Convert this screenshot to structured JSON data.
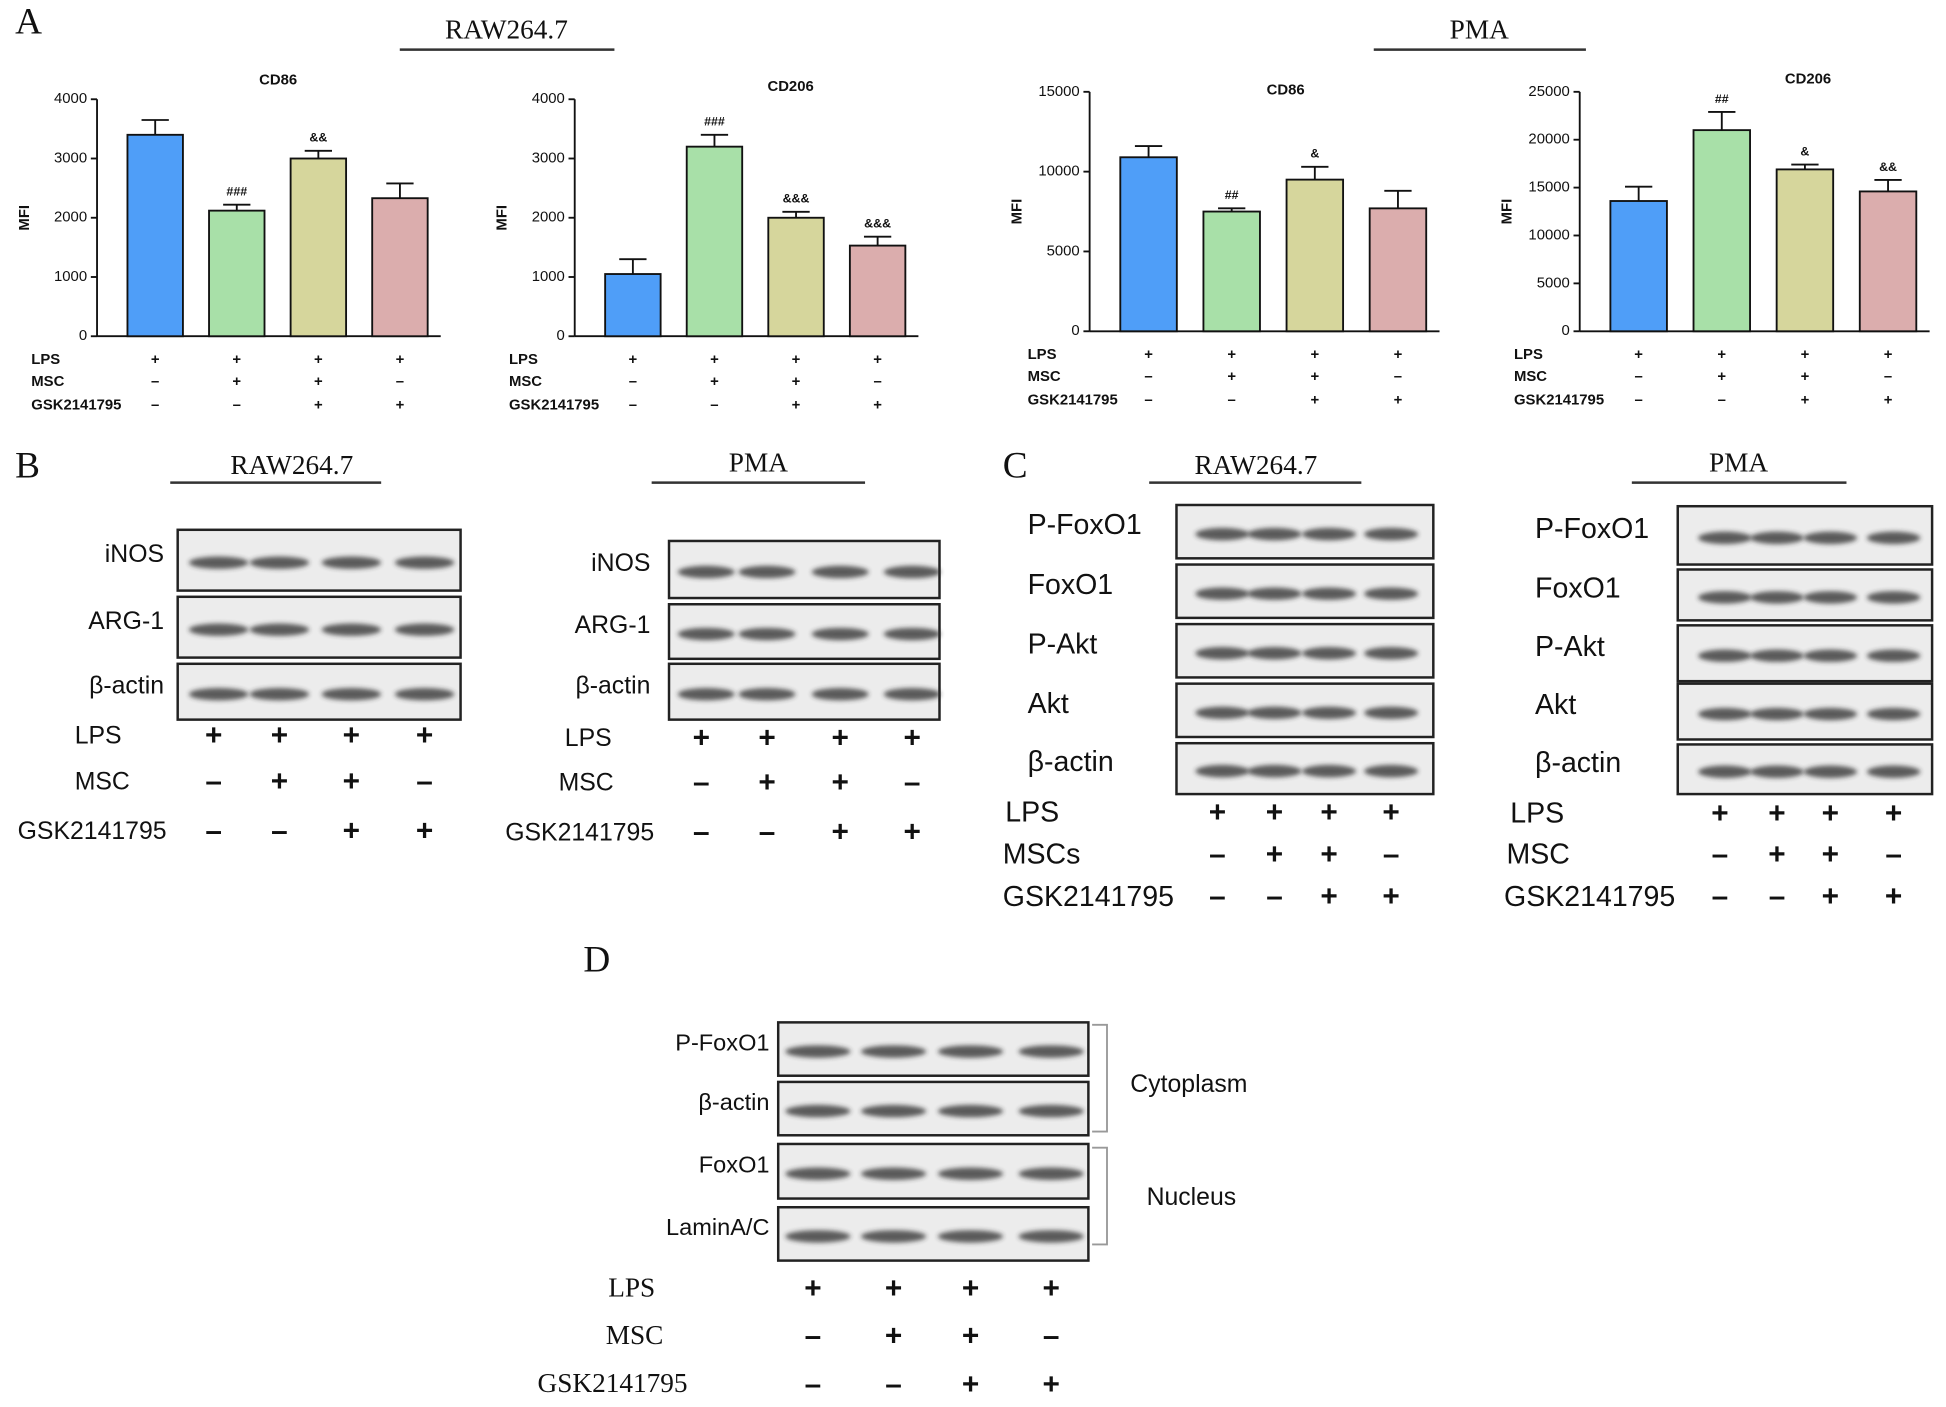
{
  "panel_labels": [
    "A",
    "B",
    "C",
    "D"
  ],
  "panel_a_groups": [
    "RAW264.7",
    "PMA"
  ],
  "chart_data": [
    {
      "type": "bar",
      "title": "CD86",
      "y_label": "MFI",
      "values": [
        3400,
        2120,
        3000,
        2330
      ],
      "errors": [
        250,
        100,
        130,
        250
      ],
      "annotations": [
        null,
        "###",
        "&&",
        null
      ],
      "colors": [
        "#4f9ef8",
        "#a8e0a8",
        "#d6d69c",
        "#dbadad"
      ],
      "ylim": [
        0,
        4000
      ],
      "yticks": [
        0,
        1000,
        2000,
        3000,
        4000
      ],
      "conditions": [
        {
          "label": "LPS",
          "signs": [
            "+",
            "+",
            "+",
            "+"
          ]
        },
        {
          "label": "MSC",
          "signs": [
            "-",
            "+",
            "+",
            "-"
          ]
        },
        {
          "label": "GSK2141795",
          "signs": [
            "-",
            "-",
            "+",
            "+"
          ]
        }
      ]
    },
    {
      "type": "bar",
      "title": "CD206",
      "y_label": "MFI",
      "values": [
        1050,
        3200,
        2000,
        1530
      ],
      "errors": [
        250,
        200,
        100,
        150
      ],
      "annotations": [
        null,
        "###",
        "&&&",
        "&&&"
      ],
      "colors": [
        "#4f9ef8",
        "#a8e0a8",
        "#d6d69c",
        "#dbadad"
      ],
      "ylim": [
        0,
        4000
      ],
      "yticks": [
        0,
        1000,
        2000,
        3000,
        4000
      ],
      "conditions": [
        {
          "label": "LPS",
          "signs": [
            "+",
            "+",
            "+",
            "+"
          ]
        },
        {
          "label": "MSC",
          "signs": [
            "-",
            "+",
            "+",
            "-"
          ]
        },
        {
          "label": "GSK2141795",
          "signs": [
            "-",
            "-",
            "+",
            "+"
          ]
        }
      ]
    },
    {
      "type": "bar",
      "title": "CD86",
      "y_label": "MFI",
      "values": [
        10900,
        7500,
        9500,
        7700
      ],
      "errors": [
        700,
        200,
        800,
        1100
      ],
      "annotations": [
        null,
        "##",
        "&",
        null
      ],
      "colors": [
        "#4f9ef8",
        "#a8e0a8",
        "#d6d69c",
        "#dbadad"
      ],
      "ylim": [
        0,
        15000
      ],
      "yticks": [
        0,
        5000,
        10000,
        15000
      ],
      "conditions": [
        {
          "label": "LPS",
          "signs": [
            "+",
            "+",
            "+",
            "+"
          ]
        },
        {
          "label": "MSC",
          "signs": [
            "-",
            "+",
            "+",
            "-"
          ]
        },
        {
          "label": "GSK2141795",
          "signs": [
            "-",
            "-",
            "+",
            "+"
          ]
        }
      ]
    },
    {
      "type": "bar",
      "title": "CD206",
      "y_label": "MFI",
      "values": [
        13600,
        21000,
        16900,
        14600
      ],
      "errors": [
        1500,
        1900,
        500,
        1200
      ],
      "annotations": [
        null,
        "##",
        "&",
        "&&"
      ],
      "colors": [
        "#4f9ef8",
        "#a8e0a8",
        "#d6d69c",
        "#dbadad"
      ],
      "ylim": [
        0,
        25000
      ],
      "yticks": [
        0,
        5000,
        10000,
        15000,
        20000,
        25000
      ],
      "conditions": [
        {
          "label": "LPS",
          "signs": [
            "+",
            "+",
            "+",
            "+"
          ]
        },
        {
          "label": "MSC",
          "signs": [
            "-",
            "+",
            "+",
            "-"
          ]
        },
        {
          "label": "GSK2141795",
          "signs": [
            "-",
            "-",
            "+",
            "+"
          ]
        }
      ]
    }
  ],
  "blots": [
    {
      "title": "RAW264.7",
      "rows": [
        "iNOS",
        "ARG-1",
        "β-actin"
      ],
      "conditions": [
        {
          "label": "LPS",
          "signs": [
            "+",
            "+",
            "+",
            "+"
          ]
        },
        {
          "label": "MSC",
          "signs": [
            "-",
            "+",
            "+",
            "-"
          ]
        },
        {
          "label": "GSK2141795",
          "signs": [
            "-",
            "-",
            "+",
            "+"
          ]
        }
      ]
    },
    {
      "title": "PMA",
      "rows": [
        "iNOS",
        "ARG-1",
        "β-actin"
      ],
      "conditions": [
        {
          "label": "LPS",
          "signs": [
            "+",
            "+",
            "+",
            "+"
          ]
        },
        {
          "label": "MSC",
          "signs": [
            "-",
            "+",
            "+",
            "-"
          ]
        },
        {
          "label": "GSK2141795",
          "signs": [
            "-",
            "-",
            "+",
            "+"
          ]
        }
      ]
    },
    {
      "title": "RAW264.7",
      "rows": [
        "P-FoxO1",
        "FoxO1",
        "P-Akt",
        "Akt",
        "β-actin"
      ],
      "conditions": [
        {
          "label": "LPS",
          "signs": [
            "+",
            "+",
            "+",
            "+"
          ]
        },
        {
          "label": "MSCs",
          "signs": [
            "-",
            "+",
            "+",
            "-"
          ]
        },
        {
          "label": "GSK2141795",
          "signs": [
            "-",
            "-",
            "+",
            "+"
          ]
        }
      ]
    },
    {
      "title": "PMA",
      "rows": [
        "P-FoxO1",
        "FoxO1",
        "P-Akt",
        "Akt",
        "β-actin"
      ],
      "conditions": [
        {
          "label": "LPS",
          "signs": [
            "+",
            "+",
            "+",
            "+"
          ]
        },
        {
          "label": "MSC",
          "signs": [
            "-",
            "+",
            "+",
            "-"
          ]
        },
        {
          "label": "GSK2141795",
          "signs": [
            "-",
            "-",
            "+",
            "+"
          ]
        }
      ]
    },
    {
      "rows": [
        "P-FoxO1",
        "β-actin",
        "FoxO1",
        "LaminA/C"
      ],
      "compartments": [
        "Cytoplasm",
        "Nucleus"
      ],
      "conditions": [
        {
          "label": "LPS",
          "signs": [
            "+",
            "+",
            "+",
            "+"
          ]
        },
        {
          "label": "MSC",
          "signs": [
            "-",
            "+",
            "+",
            "-"
          ]
        },
        {
          "label": "GSK2141795",
          "signs": [
            "-",
            "-",
            "+",
            "+"
          ]
        }
      ]
    }
  ]
}
